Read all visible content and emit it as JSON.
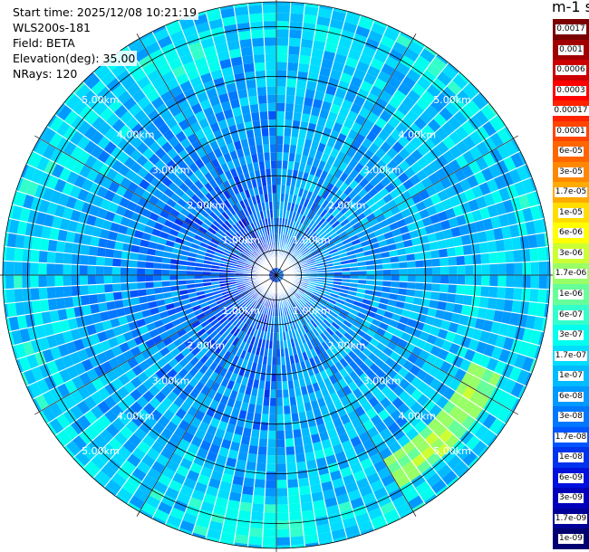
{
  "info": {
    "start_time": "Start time: 2025/12/08 10:21:19",
    "instrument": "WLS200s-181",
    "field": "Field: BETA",
    "elevation": "Elevation(deg): 35.00",
    "nrays": "NRays: 120"
  },
  "colorbar": {
    "title": "m-1 sr-1",
    "labels": [
      "0.0017",
      "0.001",
      "0.0006",
      "0.0003",
      "0.00017",
      "0.0001",
      "6e-05",
      "3e-05",
      "1.7e-05",
      "1e-05",
      "6e-06",
      "3e-06",
      "1.7e-06",
      "1e-06",
      "6e-07",
      "3e-07",
      "1.7e-07",
      "1e-07",
      "6e-08",
      "3e-08",
      "1.7e-08",
      "1e-08",
      "6e-09",
      "3e-09",
      "1.7e-09",
      "1e-09"
    ],
    "colors": [
      "#7a0000",
      "#a00000",
      "#cc0000",
      "#ff0000",
      "#ff2200",
      "#ff4400",
      "#ff6600",
      "#ff8800",
      "#ffaa00",
      "#ffdd00",
      "#ffff00",
      "#ccff33",
      "#99ff66",
      "#66ff99",
      "#33ffcc",
      "#00ffee",
      "#00ddff",
      "#00bbff",
      "#0099ff",
      "#0077ff",
      "#0055ff",
      "#0033ee",
      "#0011dd",
      "#0000bb",
      "#000099",
      "#000070"
    ]
  },
  "chart_data": {
    "type": "heatmap",
    "projection": "polar PPI scan",
    "field": "BETA",
    "elevation_deg": 35.0,
    "n_rays": 120,
    "range_km_max": 5.5,
    "range_ring_labels": [
      "1.00km",
      "2.00km",
      "3.00km",
      "4.00km",
      "5.00km"
    ],
    "range_ring_values_km": [
      1,
      2,
      3,
      4,
      5
    ],
    "spoke_angles_deg": [
      0,
      30,
      60,
      90,
      120,
      150,
      180,
      210,
      240,
      270,
      300,
      330
    ],
    "color_scale": "log",
    "value_range": [
      1e-09,
      0.0017
    ],
    "unit": "m-1 sr-1",
    "typical_values": {
      "near_range_west": 1e-08,
      "near_range_east": 3e-08,
      "far_range": 1.7e-07,
      "bright_arc_southeast": 1.7e-06,
      "bright_arc_north": 3e-07
    },
    "bright_arcs": [
      {
        "bearing_start_deg": 115,
        "bearing_end_deg": 150,
        "range_km": 4.6,
        "value": 1.7e-06
      },
      {
        "bearing_start_deg": 325,
        "bearing_end_deg": 345,
        "range_km": 4.7,
        "value": 3e-07
      },
      {
        "bearing_start_deg": 170,
        "bearing_end_deg": 200,
        "range_km": 5.0,
        "value": 3e-07
      }
    ]
  }
}
